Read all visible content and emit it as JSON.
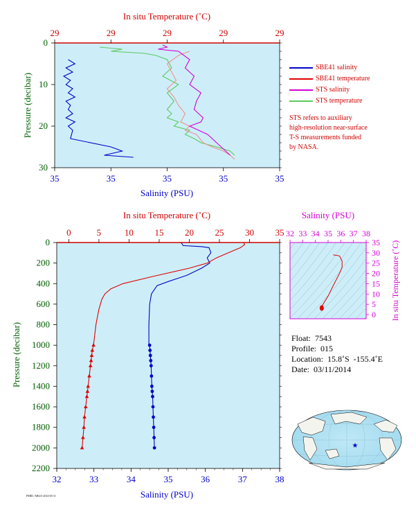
{
  "colors": {
    "plot_bg": "#cdeef9",
    "salinity": "#0000c8",
    "temperature": "#e00000",
    "sts_salinity": "#d400d4",
    "sts_temperature": "#5cc85c",
    "sts_temp_pink": "#f09090",
    "axis_red": "#d00000",
    "axis_blue": "#0000c8",
    "axis_green": "#006000",
    "axis_magenta": "#d400d4"
  },
  "float_info": {
    "float": "Float:  7543",
    "profile": "Profile:  015",
    "location": "Location:  15.8˚S  -155.4˚E",
    "date": "Date:  03/11/2014"
  },
  "legend": [
    {
      "label": "SBE41 salinity",
      "color": "#0000c8"
    },
    {
      "label": "SBE41 temperature",
      "color": "#e00000"
    },
    {
      "label": "STS salinity",
      "color": "#d400d4"
    },
    {
      "label": "STS temperature",
      "color": "#5cc85c"
    }
  ],
  "note": [
    "STS refers to auxiliary",
    "high-resolution near-surface",
    "T-S measurements funded",
    "by NASA."
  ],
  "footer_tag": "PMEL-ARGO 2014-03-11",
  "chart_data": [
    {
      "id": "top",
      "type": "line",
      "top_axis_label": "In situ Temperature (˚C)",
      "top_ticks": [
        "29",
        "29",
        "29",
        "29",
        "29"
      ],
      "bottom_axis_label": "Salinity (PSU)",
      "bottom_ticks": [
        "35",
        "35",
        "35",
        "35",
        "35"
      ],
      "ylabel": "Pressure (decibar)",
      "yticks": [
        "0",
        "10",
        "20",
        "30"
      ],
      "ylim": [
        30,
        0
      ],
      "xlim_norm": [
        0,
        1
      ],
      "series": [
        {
          "name": "SBE41 salinity",
          "x_norm": [
            0.06,
            0.09,
            0.05,
            0.08,
            0.04,
            0.07,
            0.05,
            0.08,
            0.06,
            0.09,
            0.05,
            0.07,
            0.06,
            0.08,
            0.05,
            0.09,
            0.06,
            0.08,
            0.07,
            0.25,
            0.3,
            0.22,
            0.35
          ],
          "y": [
            4,
            5,
            6,
            7,
            8,
            9,
            10,
            11,
            12,
            13,
            14,
            15,
            16,
            17,
            18,
            19,
            20,
            21,
            23,
            25,
            26,
            27,
            27.5
          ]
        },
        {
          "name": "SBE41 temperature",
          "x_norm": [
            0.6,
            0.55,
            0.5,
            0.52,
            0.54,
            0.5,
            0.53,
            0.55,
            0.58,
            0.56,
            0.6,
            0.58,
            0.63,
            0.66,
            0.7,
            0.75,
            0.78,
            0.8
          ],
          "y": [
            2,
            3,
            5,
            7,
            9,
            11,
            13,
            15,
            17,
            19,
            20,
            21,
            22,
            24,
            25,
            26,
            27,
            28
          ]
        },
        {
          "name": "STS salinity",
          "x_norm": [
            0.48,
            0.5,
            0.46,
            0.55,
            0.6,
            0.58,
            0.62,
            0.6,
            0.65,
            0.63,
            0.62,
            0.66,
            0.65,
            0.6,
            0.64,
            0.68,
            0.72,
            0.74,
            0.76,
            0.78
          ],
          "y": [
            0.5,
            1,
            1.5,
            2,
            4,
            6,
            8,
            10,
            12,
            14,
            16,
            18,
            19,
            20,
            21,
            22,
            24,
            25,
            26,
            27
          ]
        },
        {
          "name": "STS temperature",
          "x_norm": [
            0.2,
            0.3,
            0.25,
            0.4,
            0.45,
            0.5,
            0.52,
            0.48,
            0.55,
            0.5,
            0.53,
            0.5,
            0.52,
            0.5,
            0.55,
            0.53,
            0.6,
            0.58,
            0.62,
            0.65,
            0.72,
            0.78,
            0.8
          ],
          "y": [
            1,
            1.5,
            2,
            2.5,
            3,
            4,
            6,
            8,
            10,
            12,
            14,
            16,
            17,
            18,
            19,
            20,
            21,
            22,
            23,
            24,
            25,
            26,
            27
          ]
        }
      ]
    },
    {
      "id": "bottom",
      "type": "line",
      "top_axis_label": "In situ Temperature (˚C)",
      "top_ticks": [
        "0",
        "5",
        "10",
        "15",
        "20",
        "25",
        "30",
        "35"
      ],
      "xlim_temp": [
        -2,
        35
      ],
      "bottom_axis_label": "Salinity (PSU)",
      "bottom_ticks": [
        "32",
        "33",
        "34",
        "35",
        "36",
        "37",
        "38"
      ],
      "xlim_sal": [
        32,
        38
      ],
      "ylabel": "Pressure (decibar)",
      "yticks": [
        "0",
        "200",
        "400",
        "600",
        "800",
        "1000",
        "1200",
        "1400",
        "1600",
        "1800",
        "2000",
        "2200"
      ],
      "ylim": [
        2200,
        0
      ],
      "series": [
        {
          "name": "SBE41 salinity",
          "x": [
            35.35,
            35.4,
            35.9,
            36.1,
            36.15,
            36.05,
            36.12,
            35.9,
            35.5,
            35.0,
            34.7,
            34.55,
            34.5,
            34.48,
            34.48
          ],
          "y": [
            0,
            30,
            40,
            50,
            100,
            150,
            200,
            250,
            320,
            380,
            420,
            500,
            600,
            800,
            1000
          ]
        },
        {
          "name": "SBE41 temperature",
          "x": [
            29.0,
            29.2,
            28.5,
            26.5,
            24.5,
            23.0,
            20.0,
            14.0,
            9.0,
            7.0,
            6.0,
            5.5,
            5.0,
            4.5,
            4.1
          ],
          "y": [
            0,
            20,
            50,
            100,
            150,
            200,
            250,
            330,
            400,
            450,
            500,
            550,
            650,
            800,
            1000
          ]
        },
        {
          "name": "SBE41 salinity points",
          "x": [
            34.5,
            34.51,
            34.52,
            34.53,
            34.54,
            34.55,
            34.56,
            34.57,
            34.58,
            34.59,
            34.6,
            34.61,
            34.62,
            34.63
          ],
          "y": [
            1000,
            1050,
            1100,
            1150,
            1200,
            1300,
            1400,
            1450,
            1500,
            1600,
            1700,
            1800,
            1900,
            2000
          ]
        },
        {
          "name": "SBE41 temperature points",
          "x": [
            4.1,
            3.9,
            3.8,
            3.7,
            3.6,
            3.4,
            3.2,
            3.1,
            3.0,
            2.8,
            2.6,
            2.5,
            2.35,
            2.2
          ],
          "y": [
            1000,
            1050,
            1100,
            1150,
            1200,
            1300,
            1400,
            1450,
            1500,
            1600,
            1700,
            1800,
            1900,
            2000
          ]
        }
      ]
    },
    {
      "id": "ts",
      "type": "line",
      "top_axis_label": "Salinity (PSU)",
      "top_ticks": [
        "32",
        "33",
        "34",
        "35",
        "36",
        "37",
        "38"
      ],
      "xlim": [
        32,
        38
      ],
      "right_axis_label": "In situ Temperature (˚C)",
      "right_ticks": [
        "0",
        "5",
        "10",
        "15",
        "20",
        "25",
        "30",
        "35"
      ],
      "ylim": [
        -2,
        35
      ],
      "series": [
        {
          "name": "T-S curve",
          "x": [
            35.4,
            35.9,
            36.1,
            36.1,
            35.9,
            35.4,
            35.0,
            34.7,
            34.55,
            34.5,
            34.5
          ],
          "y": [
            29,
            28.5,
            26,
            23,
            20,
            14,
            9,
            6,
            4.5,
            3.5,
            2.5
          ]
        }
      ]
    }
  ]
}
